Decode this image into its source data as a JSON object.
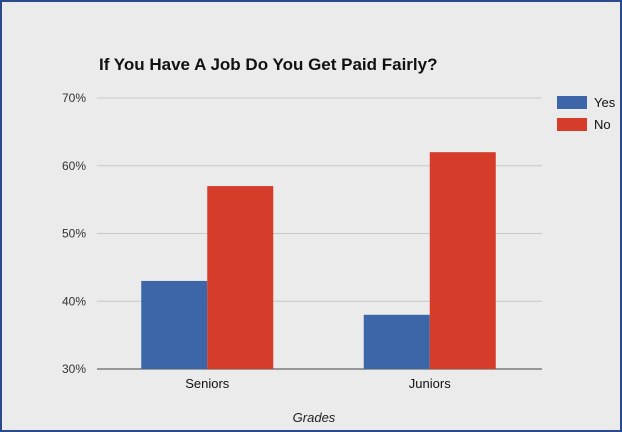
{
  "chart_data": {
    "type": "bar",
    "title": "If You Have A Job Do You Get Paid Fairly?",
    "xlabel": "Grades",
    "ylabel": "",
    "categories": [
      "Seniors",
      "Juniors"
    ],
    "series": [
      {
        "name": "Yes",
        "color": "#3d66a9",
        "values": [
          43,
          38
        ]
      },
      {
        "name": "No",
        "color": "#d63c2a",
        "values": [
          57,
          62
        ]
      }
    ],
    "ylim": [
      30,
      70
    ],
    "yticks": [
      30,
      40,
      50,
      60,
      70
    ],
    "ytick_labels": [
      "30%",
      "40%",
      "50%",
      "60%",
      "70%"
    ],
    "legend_position": "right",
    "grid": true
  }
}
